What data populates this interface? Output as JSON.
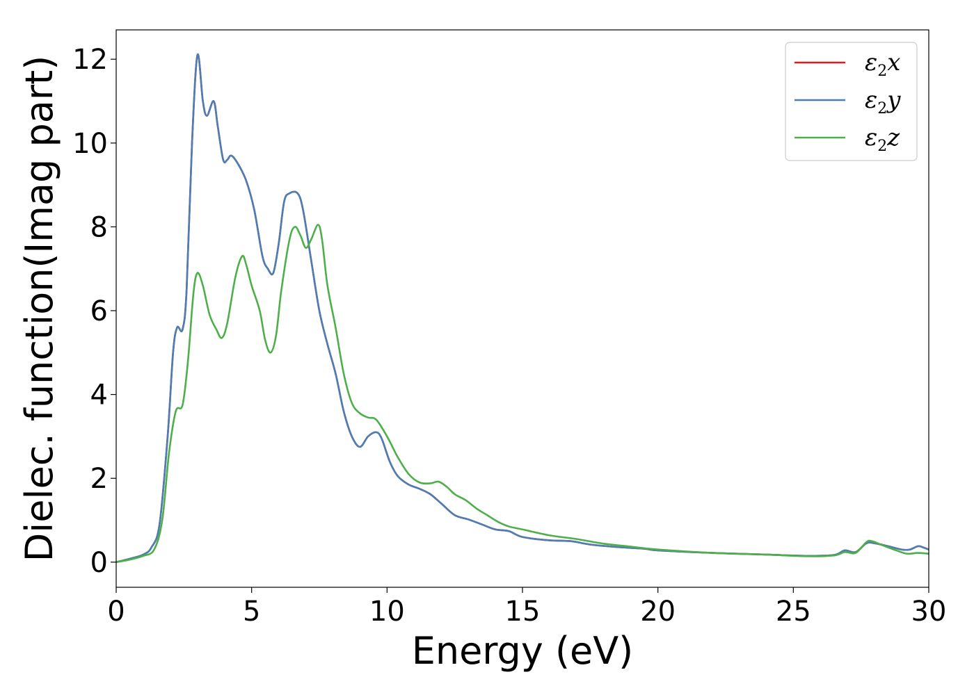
{
  "chart_data": {
    "type": "line",
    "title": "",
    "xlabel": "Energy (eV)",
    "ylabel": "Dielec. function(Imag part)",
    "xlim": [
      0,
      30
    ],
    "ylim": [
      -0.6,
      12.7
    ],
    "xticks": [
      0,
      5,
      10,
      15,
      20,
      25,
      30
    ],
    "yticks": [
      0,
      2,
      4,
      6,
      8,
      10,
      12
    ],
    "xtick_labels": [
      "0",
      "5",
      "10",
      "15",
      "20",
      "25",
      "30"
    ],
    "ytick_labels": [
      "0",
      "2",
      "4",
      "6",
      "8",
      "10",
      "12"
    ],
    "grid": false,
    "legend_position": "top-right",
    "series": [
      {
        "name": "ε2x",
        "legend_symbol": "ε",
        "legend_sub": "2",
        "legend_var": "x",
        "color": "#e41a1c",
        "points": [
          [
            0,
            0
          ],
          [
            0.5,
            0.08
          ],
          [
            1.0,
            0.18
          ],
          [
            1.3,
            0.35
          ],
          [
            1.6,
            0.9
          ],
          [
            1.9,
            3.0
          ],
          [
            2.1,
            5.0
          ],
          [
            2.25,
            5.6
          ],
          [
            2.45,
            5.55
          ],
          [
            2.6,
            6.5
          ],
          [
            2.8,
            10.0
          ],
          [
            3.0,
            12.1
          ],
          [
            3.2,
            11.0
          ],
          [
            3.35,
            10.65
          ],
          [
            3.6,
            11.0
          ],
          [
            3.75,
            10.4
          ],
          [
            3.95,
            9.6
          ],
          [
            4.1,
            9.6
          ],
          [
            4.25,
            9.7
          ],
          [
            4.5,
            9.5
          ],
          [
            4.8,
            9.1
          ],
          [
            5.1,
            8.4
          ],
          [
            5.4,
            7.3
          ],
          [
            5.6,
            7.0
          ],
          [
            5.8,
            6.9
          ],
          [
            6.0,
            7.6
          ],
          [
            6.2,
            8.6
          ],
          [
            6.4,
            8.8
          ],
          [
            6.7,
            8.8
          ],
          [
            6.9,
            8.4
          ],
          [
            7.2,
            7.2
          ],
          [
            7.5,
            6.0
          ],
          [
            7.8,
            5.2
          ],
          [
            8.1,
            4.5
          ],
          [
            8.4,
            3.6
          ],
          [
            8.7,
            3.0
          ],
          [
            9.0,
            2.75
          ],
          [
            9.3,
            3.0
          ],
          [
            9.6,
            3.1
          ],
          [
            9.8,
            2.95
          ],
          [
            10.1,
            2.4
          ],
          [
            10.4,
            2.05
          ],
          [
            10.8,
            1.85
          ],
          [
            11.2,
            1.75
          ],
          [
            11.6,
            1.62
          ],
          [
            12.0,
            1.4
          ],
          [
            12.5,
            1.12
          ],
          [
            13.0,
            1.02
          ],
          [
            13.5,
            0.9
          ],
          [
            14.0,
            0.78
          ],
          [
            14.5,
            0.74
          ],
          [
            15.0,
            0.6
          ],
          [
            16.0,
            0.52
          ],
          [
            16.8,
            0.5
          ],
          [
            17.5,
            0.42
          ],
          [
            18.5,
            0.36
          ],
          [
            19.5,
            0.32
          ],
          [
            20.0,
            0.28
          ],
          [
            22.0,
            0.22
          ],
          [
            24.0,
            0.18
          ],
          [
            25.5,
            0.15
          ],
          [
            26.5,
            0.17
          ],
          [
            26.9,
            0.28
          ],
          [
            27.3,
            0.24
          ],
          [
            27.7,
            0.45
          ],
          [
            28.0,
            0.45
          ],
          [
            28.5,
            0.38
          ],
          [
            29.0,
            0.3
          ],
          [
            29.3,
            0.3
          ],
          [
            29.6,
            0.38
          ],
          [
            29.8,
            0.35
          ],
          [
            30.0,
            0.3
          ]
        ]
      },
      {
        "name": "ε2y",
        "legend_symbol": "ε",
        "legend_sub": "2",
        "legend_var": "y",
        "color": "#4a7fb5",
        "points": [
          [
            0,
            0
          ],
          [
            0.5,
            0.08
          ],
          [
            1.0,
            0.18
          ],
          [
            1.3,
            0.35
          ],
          [
            1.6,
            0.9
          ],
          [
            1.9,
            3.0
          ],
          [
            2.1,
            5.0
          ],
          [
            2.25,
            5.6
          ],
          [
            2.45,
            5.55
          ],
          [
            2.6,
            6.5
          ],
          [
            2.8,
            10.0
          ],
          [
            3.0,
            12.1
          ],
          [
            3.2,
            11.0
          ],
          [
            3.35,
            10.65
          ],
          [
            3.6,
            11.0
          ],
          [
            3.75,
            10.4
          ],
          [
            3.95,
            9.6
          ],
          [
            4.1,
            9.6
          ],
          [
            4.25,
            9.7
          ],
          [
            4.5,
            9.5
          ],
          [
            4.8,
            9.1
          ],
          [
            5.1,
            8.4
          ],
          [
            5.4,
            7.3
          ],
          [
            5.6,
            7.0
          ],
          [
            5.8,
            6.9
          ],
          [
            6.0,
            7.6
          ],
          [
            6.2,
            8.6
          ],
          [
            6.4,
            8.8
          ],
          [
            6.7,
            8.8
          ],
          [
            6.9,
            8.4
          ],
          [
            7.2,
            7.2
          ],
          [
            7.5,
            6.0
          ],
          [
            7.8,
            5.2
          ],
          [
            8.1,
            4.5
          ],
          [
            8.4,
            3.6
          ],
          [
            8.7,
            3.0
          ],
          [
            9.0,
            2.75
          ],
          [
            9.3,
            3.0
          ],
          [
            9.6,
            3.1
          ],
          [
            9.8,
            2.95
          ],
          [
            10.1,
            2.4
          ],
          [
            10.4,
            2.05
          ],
          [
            10.8,
            1.85
          ],
          [
            11.2,
            1.75
          ],
          [
            11.6,
            1.62
          ],
          [
            12.0,
            1.4
          ],
          [
            12.5,
            1.12
          ],
          [
            13.0,
            1.02
          ],
          [
            13.5,
            0.9
          ],
          [
            14.0,
            0.78
          ],
          [
            14.5,
            0.74
          ],
          [
            15.0,
            0.6
          ],
          [
            16.0,
            0.52
          ],
          [
            16.8,
            0.5
          ],
          [
            17.5,
            0.42
          ],
          [
            18.5,
            0.36
          ],
          [
            19.5,
            0.32
          ],
          [
            20.0,
            0.28
          ],
          [
            22.0,
            0.22
          ],
          [
            24.0,
            0.18
          ],
          [
            25.5,
            0.15
          ],
          [
            26.5,
            0.17
          ],
          [
            26.9,
            0.28
          ],
          [
            27.3,
            0.24
          ],
          [
            27.7,
            0.45
          ],
          [
            28.0,
            0.45
          ],
          [
            28.5,
            0.38
          ],
          [
            29.0,
            0.3
          ],
          [
            29.3,
            0.3
          ],
          [
            29.6,
            0.38
          ],
          [
            29.8,
            0.35
          ],
          [
            30.0,
            0.3
          ]
        ]
      },
      {
        "name": "ε2z",
        "legend_symbol": "ε",
        "legend_sub": "2",
        "legend_var": "z",
        "color": "#4daf4a",
        "points": [
          [
            0,
            0
          ],
          [
            0.5,
            0.06
          ],
          [
            1.0,
            0.15
          ],
          [
            1.4,
            0.3
          ],
          [
            1.7,
            1.0
          ],
          [
            1.95,
            2.6
          ],
          [
            2.2,
            3.6
          ],
          [
            2.45,
            3.75
          ],
          [
            2.65,
            4.8
          ],
          [
            2.85,
            6.4
          ],
          [
            3.0,
            6.9
          ],
          [
            3.2,
            6.6
          ],
          [
            3.45,
            5.9
          ],
          [
            3.7,
            5.55
          ],
          [
            3.9,
            5.35
          ],
          [
            4.1,
            5.7
          ],
          [
            4.4,
            6.8
          ],
          [
            4.65,
            7.3
          ],
          [
            4.8,
            7.1
          ],
          [
            5.0,
            6.6
          ],
          [
            5.3,
            6.0
          ],
          [
            5.5,
            5.3
          ],
          [
            5.7,
            5.0
          ],
          [
            5.9,
            5.4
          ],
          [
            6.1,
            6.5
          ],
          [
            6.4,
            7.7
          ],
          [
            6.6,
            8.0
          ],
          [
            6.8,
            7.8
          ],
          [
            7.0,
            7.5
          ],
          [
            7.2,
            7.7
          ],
          [
            7.45,
            8.05
          ],
          [
            7.6,
            7.7
          ],
          [
            7.8,
            6.6
          ],
          [
            8.1,
            5.6
          ],
          [
            8.4,
            4.5
          ],
          [
            8.7,
            3.8
          ],
          [
            9.0,
            3.55
          ],
          [
            9.3,
            3.45
          ],
          [
            9.6,
            3.4
          ],
          [
            10.0,
            3.0
          ],
          [
            10.4,
            2.5
          ],
          [
            10.8,
            2.1
          ],
          [
            11.2,
            1.9
          ],
          [
            11.6,
            1.88
          ],
          [
            11.9,
            1.92
          ],
          [
            12.2,
            1.8
          ],
          [
            12.5,
            1.62
          ],
          [
            12.9,
            1.48
          ],
          [
            13.3,
            1.28
          ],
          [
            13.7,
            1.12
          ],
          [
            14.1,
            0.96
          ],
          [
            14.5,
            0.85
          ],
          [
            15.0,
            0.78
          ],
          [
            16.0,
            0.64
          ],
          [
            17.0,
            0.55
          ],
          [
            18.0,
            0.44
          ],
          [
            19.0,
            0.37
          ],
          [
            20.0,
            0.3
          ],
          [
            22.0,
            0.22
          ],
          [
            24.0,
            0.18
          ],
          [
            25.5,
            0.14
          ],
          [
            26.5,
            0.16
          ],
          [
            26.9,
            0.24
          ],
          [
            27.3,
            0.22
          ],
          [
            27.7,
            0.48
          ],
          [
            27.9,
            0.5
          ],
          [
            28.3,
            0.4
          ],
          [
            28.8,
            0.28
          ],
          [
            29.2,
            0.2
          ],
          [
            29.6,
            0.22
          ],
          [
            30.0,
            0.2
          ]
        ]
      }
    ]
  }
}
